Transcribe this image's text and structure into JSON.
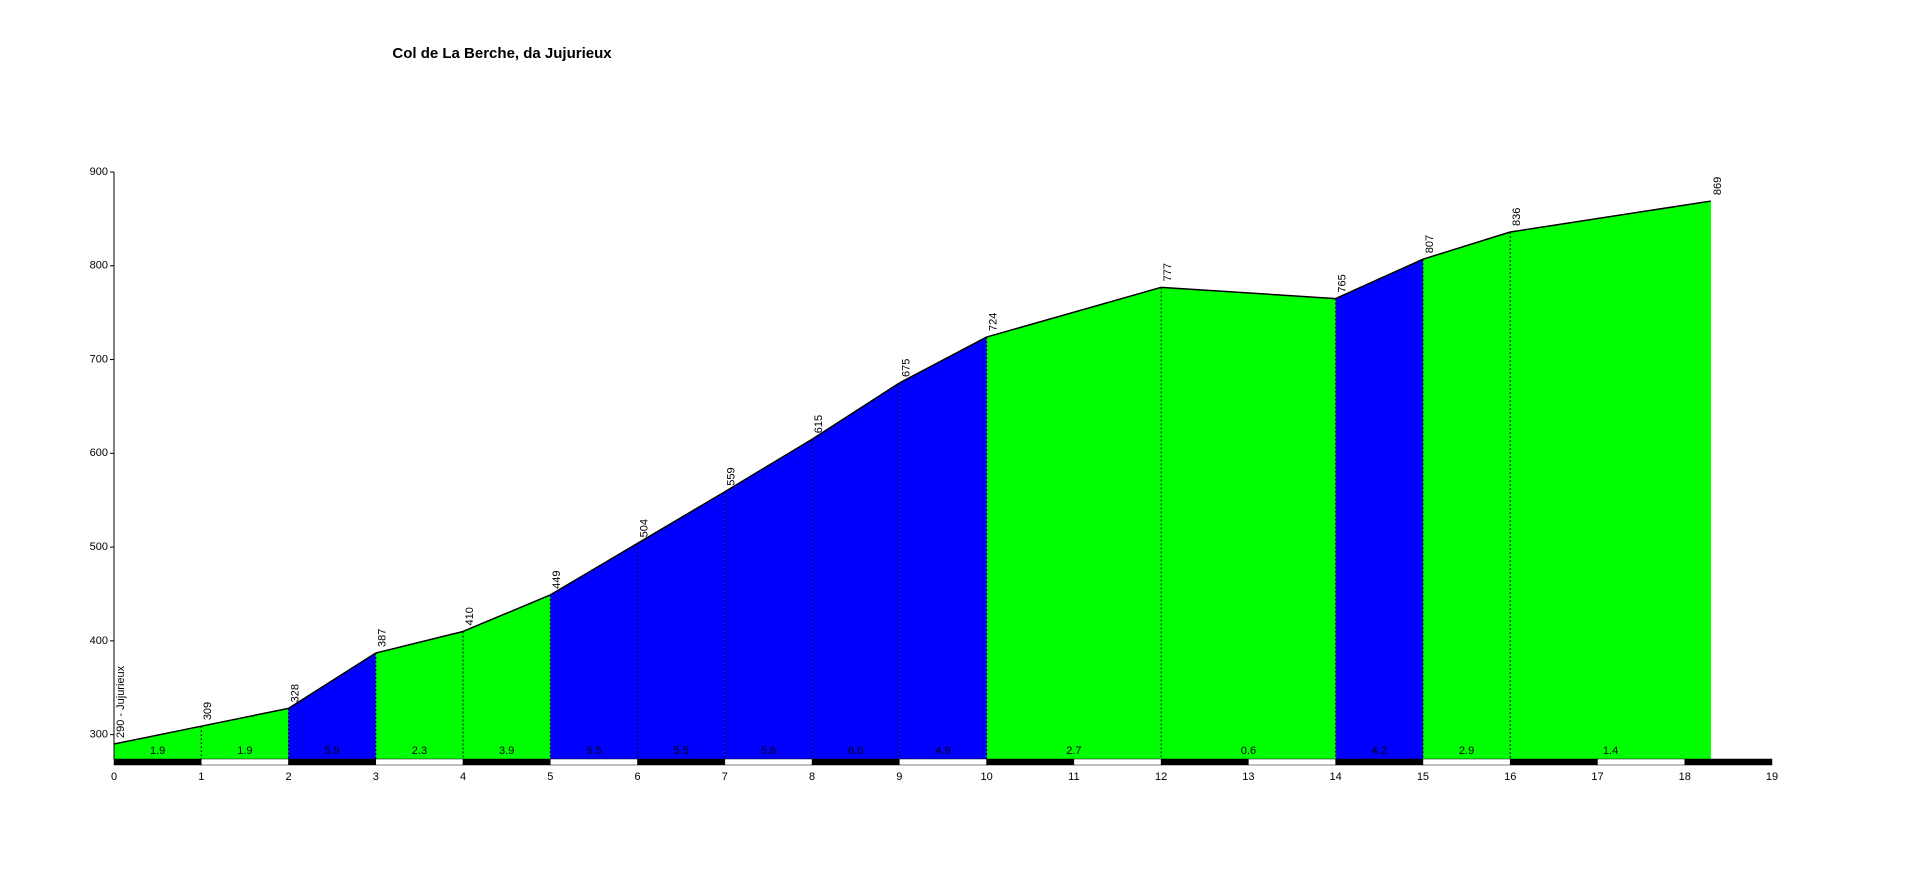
{
  "chart_data": {
    "type": "profile",
    "title": "Col de La Berche, da Jujurieux",
    "x": [
      0,
      1,
      2,
      3,
      4,
      5,
      6,
      7,
      8,
      9,
      10,
      12,
      14,
      15,
      16,
      18.3
    ],
    "values": [
      290,
      309,
      328,
      387,
      410,
      449,
      504,
      559,
      615,
      675,
      724,
      777,
      765,
      807,
      836,
      869
    ],
    "value_labels": [
      "290 - Jujurieux",
      "309",
      "328",
      "387",
      "410",
      "449",
      "504",
      "559",
      "615",
      "675",
      "724",
      "777",
      "765",
      "807",
      "836",
      "869"
    ],
    "segments": {
      "values": [
        1.9,
        1.9,
        5.9,
        2.3,
        3.9,
        5.5,
        5.5,
        5.6,
        6.0,
        4.9,
        2.7,
        0.6,
        4.2,
        2.9,
        1.4
      ],
      "value_labels": [
        "1.9",
        "1.9",
        "5.9",
        "2.3",
        "3.9",
        "5.5",
        "5.5",
        "5.6",
        "6.0",
        "4.9",
        "2.7",
        "0.6",
        "4.2",
        "2.9",
        "1.4"
      ],
      "colors": [
        "#00ff00",
        "#00ff00",
        "#0000ff",
        "#00ff00",
        "#00ff00",
        "#0000ff",
        "#0000ff",
        "#0000ff",
        "#0000ff",
        "#0000ff",
        "#00ff00",
        "#00ff00",
        "#0000ff",
        "#00ff00",
        "#00ff00"
      ]
    },
    "xlim": [
      0,
      19
    ],
    "xticks": [
      0,
      1,
      2,
      3,
      4,
      5,
      6,
      7,
      8,
      9,
      10,
      11,
      12,
      13,
      14,
      15,
      16,
      17,
      18,
      19
    ],
    "ylim": [
      274,
      900
    ],
    "yticks": [
      300,
      400,
      500,
      600,
      700,
      800,
      900
    ]
  }
}
